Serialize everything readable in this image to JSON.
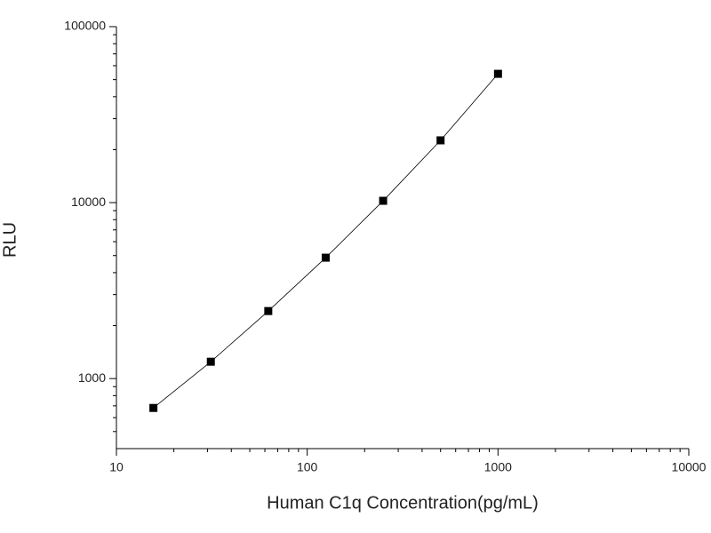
{
  "chart_data": {
    "type": "scatter",
    "xlabel": "Human C1q Concentration(pg/mL)",
    "ylabel": "RLU",
    "xscale": "log",
    "yscale": "log",
    "x": [
      15.625,
      31.25,
      62.5,
      125,
      250,
      500,
      1000
    ],
    "series": [
      {
        "color": "#000000",
        "marker": "square",
        "line": true,
        "values": [
          681,
          1247,
          2420,
          4865,
          10240,
          22590,
          53950
        ]
      }
    ],
    "xlim": [
      10,
      10000
    ],
    "xticks": [
      10,
      100,
      1000,
      10000
    ],
    "ylim": [
      400,
      100000
    ],
    "yticks": [
      1000,
      10000,
      100000
    ]
  }
}
